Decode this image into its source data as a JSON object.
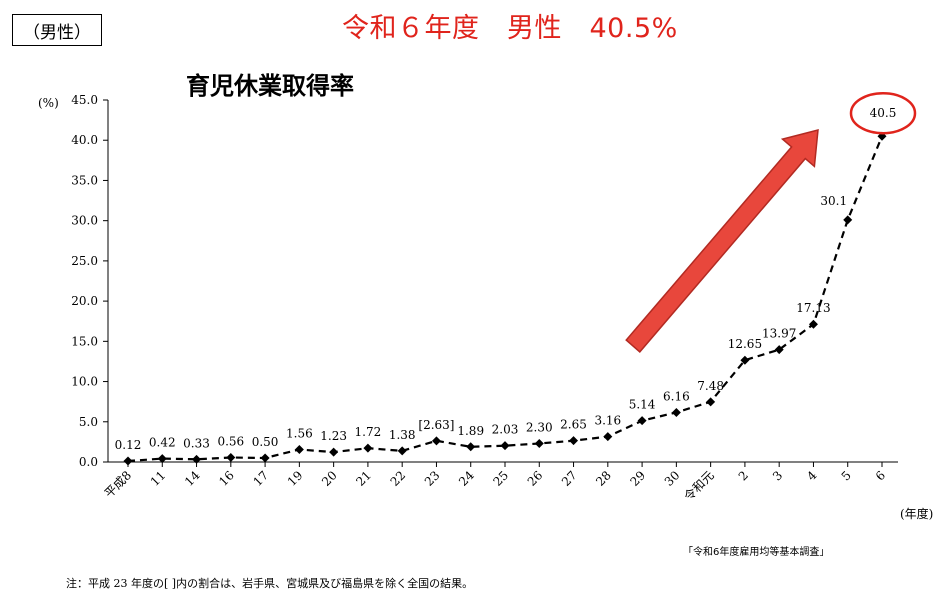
{
  "tag": "（男性）",
  "headline": "令和６年度　男性　40.5%",
  "source": "「令和6年度雇用均等基本調査」",
  "note": "注：平成 23 年度の[ ]内の割合は、岩手県、宮城県及び福島県を除く全国の結果。",
  "colors": {
    "accent": "#e0241c",
    "arrow_fill": "#e8473c",
    "arrow_stroke": "#b22a22",
    "series": "#000000"
  },
  "chart_data": {
    "type": "line",
    "title": "育児休業取得率",
    "ylabel": "(%)",
    "xlabel": "(年度)",
    "ylim": [
      0,
      45
    ],
    "yticks": [
      "0.0",
      "5.0",
      "10.0",
      "15.0",
      "20.0",
      "25.0",
      "30.0",
      "35.0",
      "40.0",
      "45.0"
    ],
    "categories": [
      "平成8",
      "11",
      "14",
      "16",
      "17",
      "19",
      "20",
      "21",
      "22",
      "23",
      "24",
      "25",
      "26",
      "27",
      "28",
      "29",
      "30",
      "令和元",
      "2",
      "3",
      "4",
      "5",
      "6"
    ],
    "values": [
      0.12,
      0.42,
      0.33,
      0.56,
      0.5,
      1.56,
      1.23,
      1.72,
      1.38,
      2.63,
      1.89,
      2.03,
      2.3,
      2.65,
      3.16,
      5.14,
      6.16,
      7.48,
      12.65,
      13.97,
      17.13,
      30.1,
      40.5
    ],
    "labels": [
      "0.12",
      "0.42",
      "0.33",
      "0.56",
      "0.50",
      "1.56",
      "1.23",
      "1.72",
      "1.38",
      "[2.63]",
      "1.89",
      "2.03",
      "2.30",
      "2.65",
      "3.16",
      "5.14",
      "6.16",
      "7.48",
      "12.65",
      "13.97",
      "17.13",
      "30.1",
      "40.5"
    ],
    "line_style": "dashed",
    "marker": "diamond",
    "grid": false,
    "highlight_index": 22
  }
}
